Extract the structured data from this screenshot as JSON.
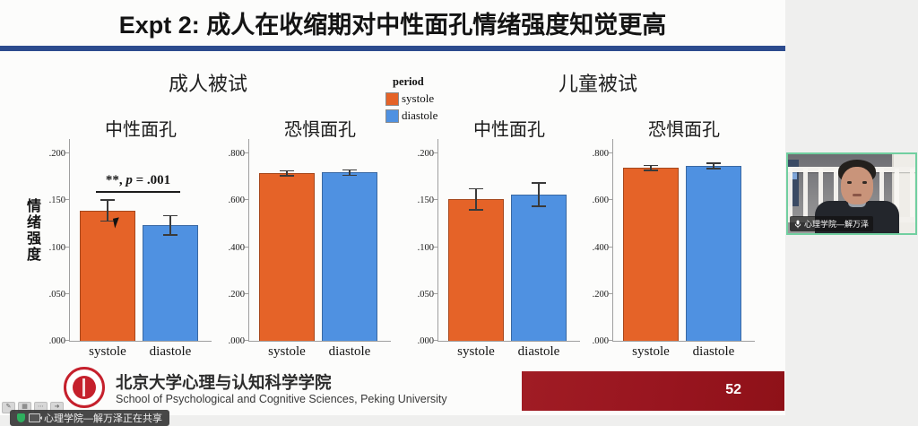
{
  "slide": {
    "title": "Expt 2: 成人在收缩期对中性面孔情绪强度知觉更高",
    "underline_color": "#2c4b8e",
    "group_titles": {
      "adult": "成人被试",
      "child": "儿童被试"
    },
    "y_axis_label": "情绪强度",
    "legend": {
      "title": "period",
      "items": [
        {
          "label": "systole",
          "color": "#e56328"
        },
        {
          "label": "diastole",
          "color": "#4f91e1"
        }
      ]
    }
  },
  "chart_data": [
    {
      "type": "bar",
      "group": "成人被试",
      "title": "中性面孔",
      "categories": [
        "systole",
        "diastole"
      ],
      "values": [
        0.139,
        0.123
      ],
      "errors": [
        0.012,
        0.011
      ],
      "ylim": [
        0,
        0.2
      ],
      "ytick_labels": [
        ".000",
        ".050",
        ".100",
        ".150",
        ".200"
      ],
      "ylabel": "情绪强度",
      "annotation": {
        "prefix": "**, ",
        "italic": "p",
        "suffix": " = .001"
      }
    },
    {
      "type": "bar",
      "group": "成人被试",
      "title": "恐惧面孔",
      "categories": [
        "systole",
        "diastole"
      ],
      "values": [
        0.715,
        0.718
      ],
      "errors": [
        0.014,
        0.014
      ],
      "ylim": [
        0,
        0.8
      ],
      "ytick_labels": [
        ".000",
        ".200",
        ".400",
        ".600",
        ".800"
      ]
    },
    {
      "type": "bar",
      "group": "儿童被试",
      "title": "中性面孔",
      "categories": [
        "systole",
        "diastole"
      ],
      "values": [
        0.151,
        0.156
      ],
      "errors": [
        0.012,
        0.013
      ],
      "ylim": [
        0,
        0.2
      ],
      "ytick_labels": [
        ".000",
        ".050",
        ".100",
        ".150",
        ".200"
      ]
    },
    {
      "type": "bar",
      "group": "儿童被试",
      "title": "恐惧面孔",
      "categories": [
        "systole",
        "diastole"
      ],
      "values": [
        0.738,
        0.746
      ],
      "errors": [
        0.013,
        0.014
      ],
      "ylim": [
        0,
        0.8
      ],
      "ytick_labels": [
        ".000",
        ".200",
        ".400",
        ".600",
        ".800"
      ]
    }
  ],
  "footer": {
    "institution_cn": "北京大学心理与认知科学学院",
    "institution_en": "School of Psychological and Cognitive Sciences, Peking University",
    "page_number": "52",
    "page_bar_color": "#9a1822",
    "logo_color": "#c5202c"
  },
  "webcam": {
    "participant_name": "心理学院—解万泽",
    "border_color": "#71cfa0"
  },
  "share_bar": {
    "text": "心理学院—解万泽正在共享"
  }
}
